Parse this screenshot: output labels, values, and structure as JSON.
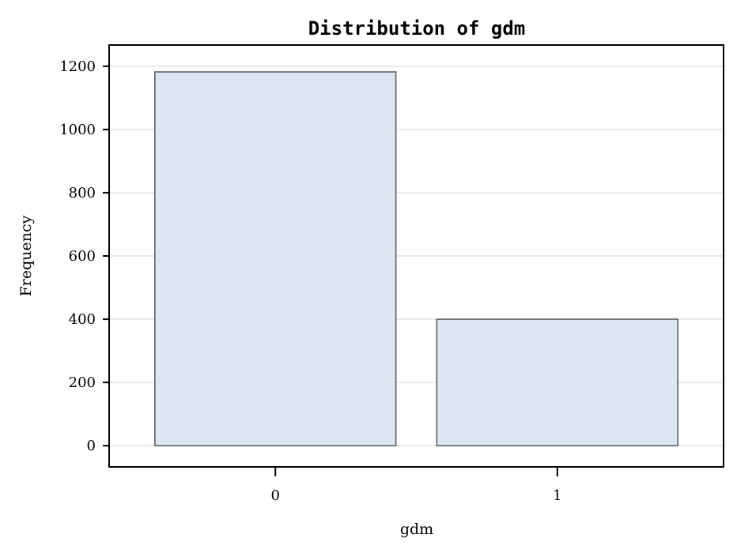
{
  "chart_data": {
    "type": "bar",
    "title": "Distribution of gdm",
    "xlabel": "gdm",
    "ylabel": "Frequency",
    "categories": [
      "0",
      "1"
    ],
    "values": [
      1182,
      400
    ],
    "ylim": [
      -67,
      1267
    ],
    "yticks": [
      0,
      200,
      400,
      600,
      800,
      1000,
      1200
    ],
    "grid": true,
    "colors": {
      "bar_fill": "#dce6f2",
      "bar_stroke": "#5f6166",
      "grid": "#e8e8e8",
      "axis": "#000000"
    }
  }
}
